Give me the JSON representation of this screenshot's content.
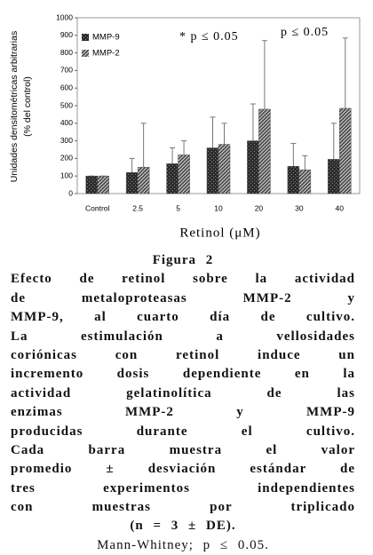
{
  "chart_data": {
    "type": "bar",
    "y_label": [
      "Unidades densitométricas arbitrarias",
      "(% del control)"
    ],
    "x_label": "Retinol (μM)",
    "annotations": [
      "* p ≤ 0.05",
      "p ≤ 0.05"
    ],
    "categories": [
      "Control",
      "2.5",
      "5",
      "10",
      "20",
      "30",
      "40"
    ],
    "series": [
      {
        "name": "MMP-9",
        "color": "#2b2b2b",
        "values": [
          100,
          120,
          170,
          260,
          300,
          155,
          195
        ],
        "errors": [
          0,
          80,
          90,
          175,
          210,
          130,
          205
        ]
      },
      {
        "name": "MMP-2",
        "color": "#4a4a4a",
        "values": [
          100,
          150,
          220,
          280,
          480,
          135,
          485
        ],
        "errors": [
          0,
          250,
          80,
          120,
          390,
          80,
          400
        ]
      }
    ],
    "ylim": [
      0,
      1000
    ],
    "yticks": [
      0,
      100,
      200,
      300,
      400,
      500,
      600,
      700,
      800,
      900,
      1000
    ],
    "grid": false,
    "legend": "upper-left"
  },
  "caption": {
    "label": "Figura 2",
    "lines": [
      "Efecto de retinol sobre la actividad",
      "de metaloproteasas MMP-2 y",
      "MMP-9, al cuarto día de cultivo.",
      "La estimulación a vellosidades",
      "coriónicas con retinol induce un",
      "incremento dosis dependiente en la",
      "actividad gelatinolítica de las",
      "enzimas MMP-2 y MMP-9",
      "producidas durante el cultivo.",
      "Cada barra muestra el valor",
      "promedio ± desviación estándar de",
      "tres experimentos independientes",
      "con muestras por triplicado",
      "(n = 3 ± DE)."
    ],
    "footer": "Mann-Whitney; p ≤ 0.05."
  }
}
